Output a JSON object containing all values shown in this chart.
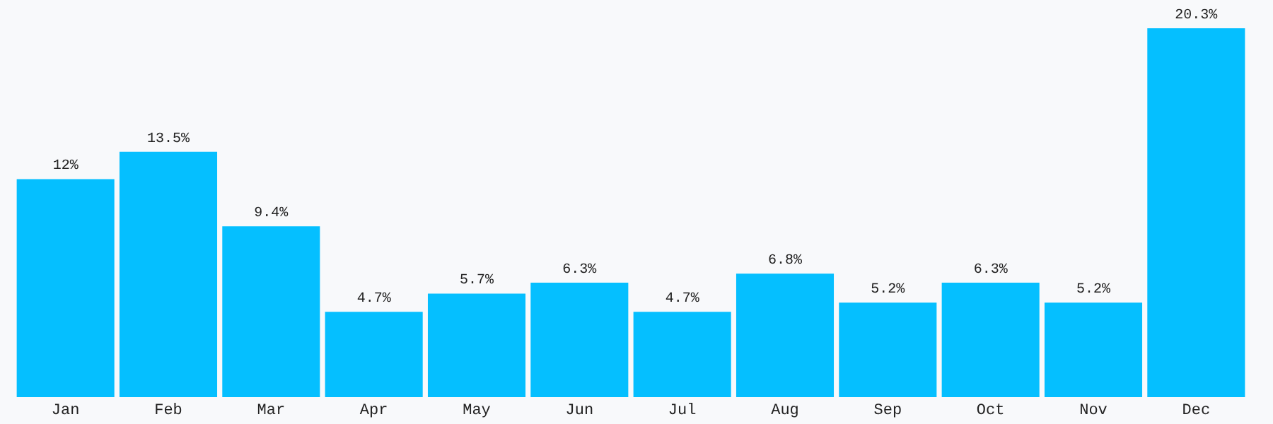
{
  "chart_data": {
    "type": "bar",
    "categories": [
      "Jan",
      "Feb",
      "Mar",
      "Apr",
      "May",
      "Jun",
      "Jul",
      "Aug",
      "Sep",
      "Oct",
      "Nov",
      "Dec"
    ],
    "values": [
      12,
      13.5,
      9.4,
      4.7,
      5.7,
      6.3,
      4.7,
      6.8,
      5.2,
      6.3,
      5.2,
      20.3
    ],
    "value_labels": [
      "12%",
      "13.5%",
      "9.4%",
      "4.7%",
      "5.7%",
      "6.3%",
      "4.7%",
      "6.8%",
      "5.2%",
      "6.3%",
      "5.2%",
      "20.3%"
    ],
    "color": "#05bfff",
    "ylim": [
      0,
      20.3
    ],
    "grid": false
  }
}
